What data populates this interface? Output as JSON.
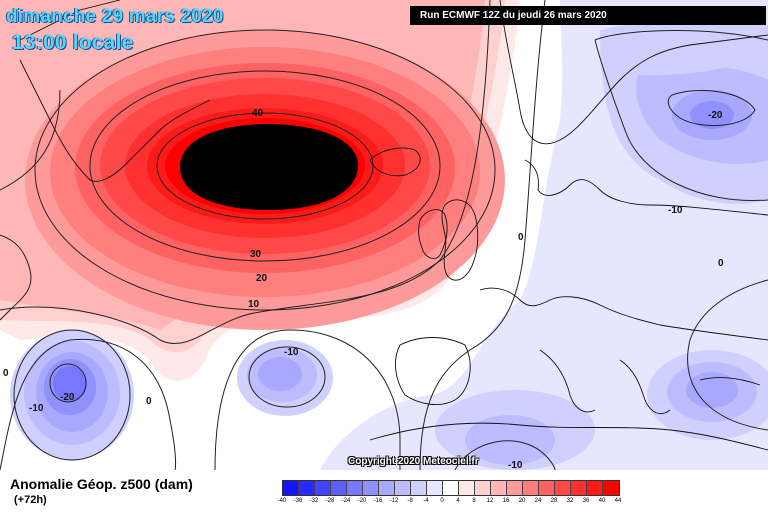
{
  "title": {
    "date": "dimanche 29 mars 2020",
    "time": "13:00 locale"
  },
  "run_banner": "Run ECMWF 12Z du jeudi 26 mars 2020",
  "copyright": "Copyright 2020 Meteociel.fr",
  "variable_title": "Anomalie Géop. z500 (dam)",
  "lead_time": "(+72h)",
  "contour_labels": {
    "l40": "40",
    "l30": "30",
    "l20": "20",
    "l10": "10",
    "zero_left": "0",
    "zero_mid": "0",
    "zero_north": "0",
    "zero_east": "0",
    "neg10_east": "-10",
    "neg20_scand": "-20",
    "neg10_atl": "-10",
    "neg20_sw": "-20",
    "neg10_sw": "-10",
    "neg10_sahara": "-10"
  },
  "legend": {
    "labels": [
      "-40",
      "-36",
      "-32",
      "-28",
      "-24",
      "-20",
      "-16",
      "-12",
      "-8",
      "-4",
      "0",
      "4",
      "8",
      "12",
      "16",
      "20",
      "24",
      "28",
      "32",
      "36",
      "40",
      "44"
    ],
    "colors": [
      "#1414ff",
      "#2a2aff",
      "#4444ff",
      "#5f5fff",
      "#7878ff",
      "#9090ff",
      "#a8a8ff",
      "#bcbcff",
      "#d0d0ff",
      "#e6e6ff",
      "#ffffff",
      "#ffe8e8",
      "#ffd0d0",
      "#ffb6b6",
      "#ff9a9a",
      "#ff7e7e",
      "#ff6262",
      "#ff4848",
      "#ff3030",
      "#ff1a1a",
      "#ff0000"
    ]
  }
}
